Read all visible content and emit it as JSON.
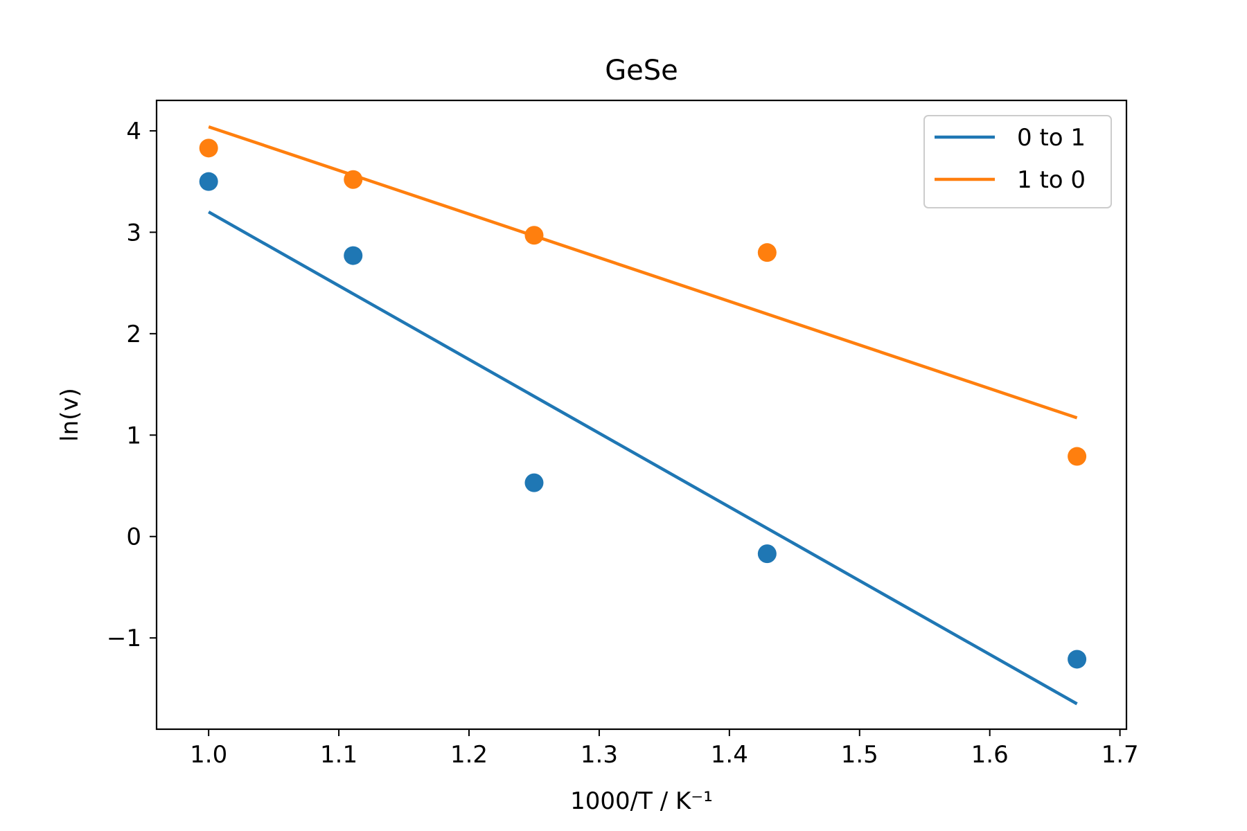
{
  "chart_data": {
    "type": "scatter",
    "title": "GeSe",
    "xlabel": "1000/T / K⁻¹",
    "ylabel": "ln(v)",
    "xlim": [
      0.96,
      1.705
    ],
    "ylim": [
      -1.9,
      4.3
    ],
    "x_ticks": [
      1.0,
      1.1,
      1.2,
      1.3,
      1.4,
      1.5,
      1.6,
      1.7
    ],
    "x_tick_labels": [
      "1.0",
      "1.1",
      "1.2",
      "1.3",
      "1.4",
      "1.5",
      "1.6",
      "1.7"
    ],
    "y_ticks": [
      -1,
      0,
      1,
      2,
      3,
      4
    ],
    "y_tick_labels": [
      "−1",
      "0",
      "1",
      "2",
      "3",
      "4"
    ],
    "grid": false,
    "legend_position": "top-right",
    "series": [
      {
        "name": "0 to 1",
        "color": "#1f77b4",
        "x": [
          1.0,
          1.111,
          1.25,
          1.429,
          1.667
        ],
        "y": [
          3.5,
          2.77,
          0.53,
          -0.17,
          -1.21
        ],
        "fit": {
          "x": [
            1.0,
            1.667
          ],
          "y": [
            3.2,
            -1.65
          ]
        }
      },
      {
        "name": "1 to 0",
        "color": "#ff7f0e",
        "x": [
          1.0,
          1.111,
          1.25,
          1.429,
          1.667
        ],
        "y": [
          3.83,
          3.52,
          2.97,
          2.8,
          0.79
        ],
        "fit": {
          "x": [
            1.0,
            1.667
          ],
          "y": [
            4.04,
            1.17
          ]
        }
      }
    ]
  }
}
